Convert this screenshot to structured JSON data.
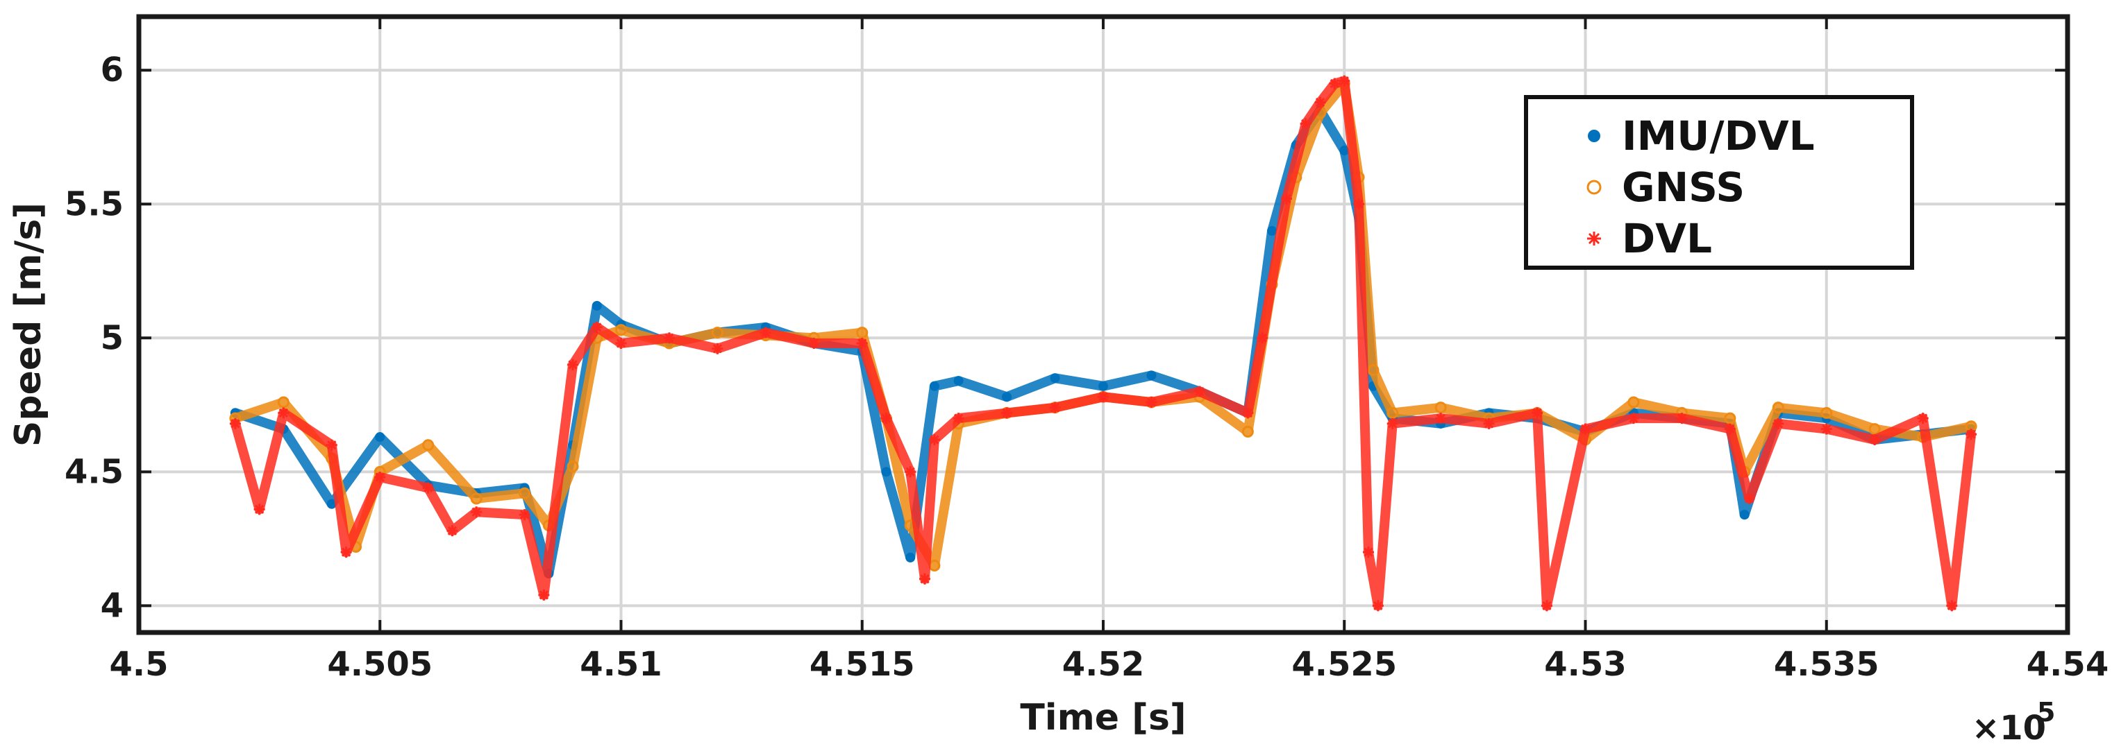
{
  "chart_data": {
    "type": "scatter",
    "title": "",
    "xlabel": "Time [s]",
    "ylabel": "Speed [m/s]",
    "x_exponent_label": "×10",
    "x_exponent_power": "5",
    "xlim": [
      450000,
      454000
    ],
    "ylim": [
      3.9,
      6.2
    ],
    "grid": true,
    "legend_position": "top-right",
    "x_ticks": [
      {
        "value": 450000,
        "label": "4.5"
      },
      {
        "value": 450500,
        "label": "4.505"
      },
      {
        "value": 451000,
        "label": "4.51"
      },
      {
        "value": 451500,
        "label": "4.515"
      },
      {
        "value": 452000,
        "label": "4.52"
      },
      {
        "value": 452500,
        "label": "4.525"
      },
      {
        "value": 453000,
        "label": "4.53"
      },
      {
        "value": 453500,
        "label": "4.535"
      },
      {
        "value": 454000,
        "label": "4.54"
      }
    ],
    "y_ticks": [
      {
        "value": 4,
        "label": "4"
      },
      {
        "value": 4.5,
        "label": "4.5"
      },
      {
        "value": 5,
        "label": "5"
      },
      {
        "value": 5.5,
        "label": "5.5"
      },
      {
        "value": 6,
        "label": "6"
      }
    ],
    "series": [
      {
        "name": "IMU/DVL",
        "marker": "filled-circle",
        "color": "#0072BD",
        "x": [
          450200,
          450300,
          450400,
          450500,
          450600,
          450700,
          450800,
          450850,
          450900,
          450950,
          451000,
          451100,
          451200,
          451300,
          451400,
          451500,
          451550,
          451600,
          451650,
          451700,
          451800,
          451900,
          452000,
          452100,
          452200,
          452300,
          452350,
          452400,
          452450,
          452500,
          452530,
          452560,
          452600,
          452700,
          452800,
          452900,
          453000,
          453100,
          453200,
          453300,
          453330,
          453400,
          453500,
          453600,
          453700,
          453800
        ],
        "y": [
          4.72,
          4.66,
          4.38,
          4.63,
          4.45,
          4.42,
          4.44,
          4.12,
          4.6,
          5.12,
          5.05,
          4.98,
          5.02,
          5.04,
          4.98,
          4.95,
          4.5,
          4.18,
          4.82,
          4.84,
          4.78,
          4.85,
          4.82,
          4.86,
          4.8,
          4.72,
          5.4,
          5.72,
          5.85,
          5.7,
          5.45,
          4.82,
          4.7,
          4.68,
          4.72,
          4.7,
          4.65,
          4.72,
          4.7,
          4.68,
          4.34,
          4.72,
          4.7,
          4.62,
          4.64,
          4.66
        ]
      },
      {
        "name": "GNSS",
        "marker": "open-circle",
        "color": "#EE8A11",
        "x": [
          450200,
          450300,
          450400,
          450450,
          450500,
          450600,
          450700,
          450800,
          450850,
          450900,
          450950,
          451000,
          451100,
          451200,
          451300,
          451400,
          451500,
          451550,
          451600,
          451650,
          451700,
          451800,
          451900,
          452000,
          452100,
          452200,
          452300,
          452350,
          452400,
          452450,
          452500,
          452530,
          452560,
          452600,
          452700,
          452800,
          452900,
          453000,
          453100,
          453200,
          453300,
          453330,
          453400,
          453500,
          453600,
          453700,
          453800
        ],
        "y": [
          4.7,
          4.76,
          4.55,
          4.22,
          4.5,
          4.6,
          4.4,
          4.42,
          4.3,
          4.52,
          5.0,
          5.03,
          4.98,
          5.02,
          5.01,
          5.0,
          5.02,
          4.7,
          4.3,
          4.15,
          4.68,
          4.72,
          4.74,
          4.78,
          4.76,
          4.78,
          4.65,
          5.2,
          5.6,
          5.84,
          5.95,
          5.6,
          4.88,
          4.72,
          4.74,
          4.7,
          4.72,
          4.62,
          4.76,
          4.72,
          4.7,
          4.5,
          4.74,
          4.72,
          4.66,
          4.63,
          4.67
        ]
      },
      {
        "name": "DVL",
        "marker": "asterisk",
        "color": "#FF2A1F",
        "x": [
          450200,
          450250,
          450300,
          450400,
          450430,
          450500,
          450600,
          450650,
          450700,
          450800,
          450840,
          450900,
          450950,
          451000,
          451100,
          451200,
          451300,
          451400,
          451500,
          451550,
          451600,
          451630,
          451650,
          451700,
          451800,
          451900,
          452000,
          452100,
          452200,
          452300,
          452330,
          452380,
          452420,
          452450,
          452480,
          452500,
          452530,
          452550,
          452570,
          452600,
          452700,
          452800,
          452900,
          452920,
          453000,
          453100,
          453200,
          453300,
          453340,
          453400,
          453500,
          453600,
          453700,
          453760,
          453800
        ],
        "y": [
          4.68,
          4.36,
          4.72,
          4.6,
          4.2,
          4.48,
          4.44,
          4.28,
          4.35,
          4.34,
          4.04,
          4.9,
          5.04,
          4.98,
          5.0,
          4.96,
          5.02,
          4.98,
          4.98,
          4.7,
          4.5,
          4.1,
          4.62,
          4.7,
          4.72,
          4.74,
          4.78,
          4.76,
          4.8,
          4.72,
          5.0,
          5.52,
          5.8,
          5.88,
          5.95,
          5.96,
          5.5,
          4.2,
          4.0,
          4.68,
          4.7,
          4.68,
          4.72,
          4.0,
          4.66,
          4.7,
          4.7,
          4.66,
          4.4,
          4.68,
          4.66,
          4.62,
          4.7,
          4.0,
          4.64
        ]
      }
    ]
  }
}
